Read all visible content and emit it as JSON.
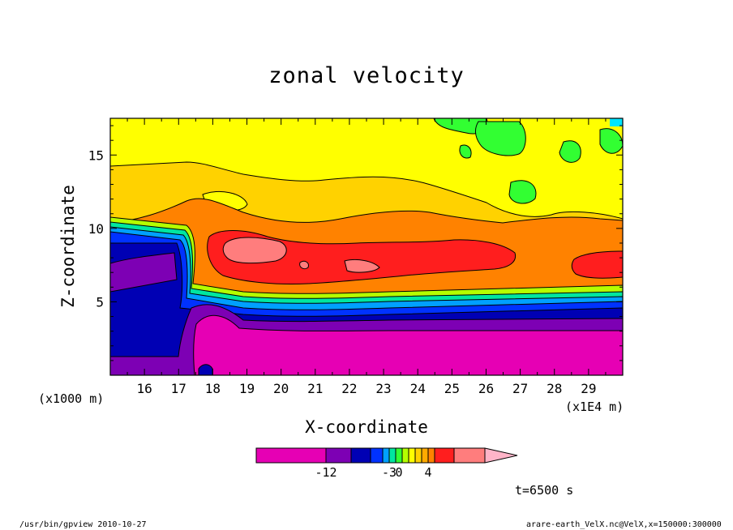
{
  "chart_data": {
    "type": "heatmap",
    "title": "zonal velocity",
    "xlabel": "X-coordinate",
    "ylabel": "Z-coordinate",
    "x_unit": "(x1E4 m)",
    "y_unit": "(x1000 m)",
    "x_ticks": [
      "16",
      "17",
      "18",
      "19",
      "20",
      "21",
      "22",
      "23",
      "24",
      "25",
      "26",
      "27",
      "28",
      "29"
    ],
    "y_ticks": [
      "5",
      "10",
      "15"
    ],
    "xlim": [
      15.0,
      30.0
    ],
    "ylim": [
      0.0,
      17.5
    ],
    "colorbar": {
      "tick_labels": [
        "-12",
        "-3",
        "0",
        "4"
      ],
      "colors": [
        "#e600b4",
        "#7d00b4",
        "#0000b4",
        "#0032ff",
        "#00a0ff",
        "#00e6a0",
        "#32ff32",
        "#b4ff00",
        "#ffff00",
        "#ffd200",
        "#ffaa00",
        "#ff8200",
        "#ff1e1e",
        "#ff7d7d",
        "#ffb4c8"
      ]
    },
    "time_label": "t=6500 s",
    "regions": [
      {
        "level": "#ffd200",
        "note": "upper background"
      },
      {
        "level": "#ffff00",
        "note": "upper layer 15-17.5"
      },
      {
        "level": "#32ff32",
        "note": "patches near top"
      },
      {
        "level": "#ff8200",
        "note": "band 6-11"
      },
      {
        "level": "#ff1e1e",
        "note": "core 7-10"
      },
      {
        "level": "#ff7d7d",
        "note": "max core"
      },
      {
        "level": "#0000b4",
        "note": "low band 3-5"
      },
      {
        "level": "#e600b4",
        "note": "surface min"
      }
    ]
  },
  "footer": {
    "left": "/usr/bin/gpview   2010-10-27",
    "right": "arare-earth_VelX.nc@VelX,x=150000:300000"
  }
}
